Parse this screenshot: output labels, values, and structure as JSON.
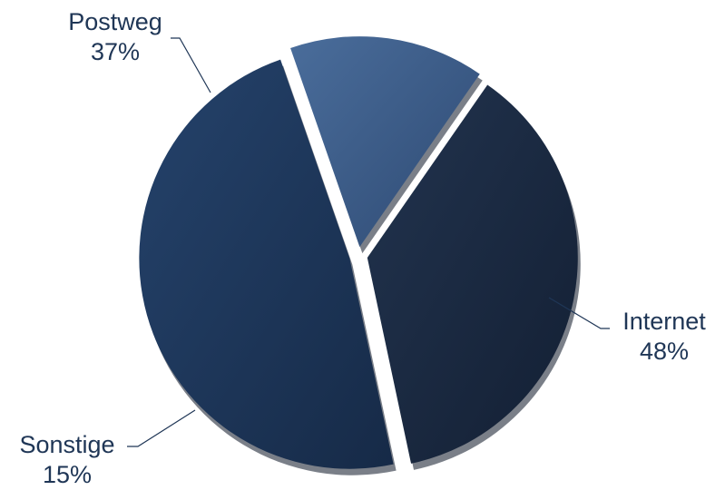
{
  "chart_data": {
    "type": "pie",
    "title": "",
    "slices": [
      {
        "label": "Internet",
        "value": 48,
        "value_label": "48%",
        "color": "#1d365a"
      },
      {
        "label": "Sonstige",
        "value": 15,
        "value_label": "15%",
        "color": "#3e5f8c"
      },
      {
        "label": "Postweg",
        "value": 37,
        "value_label": "37%",
        "color": "#1b2a42"
      }
    ],
    "exploded": true,
    "legend": "none"
  }
}
